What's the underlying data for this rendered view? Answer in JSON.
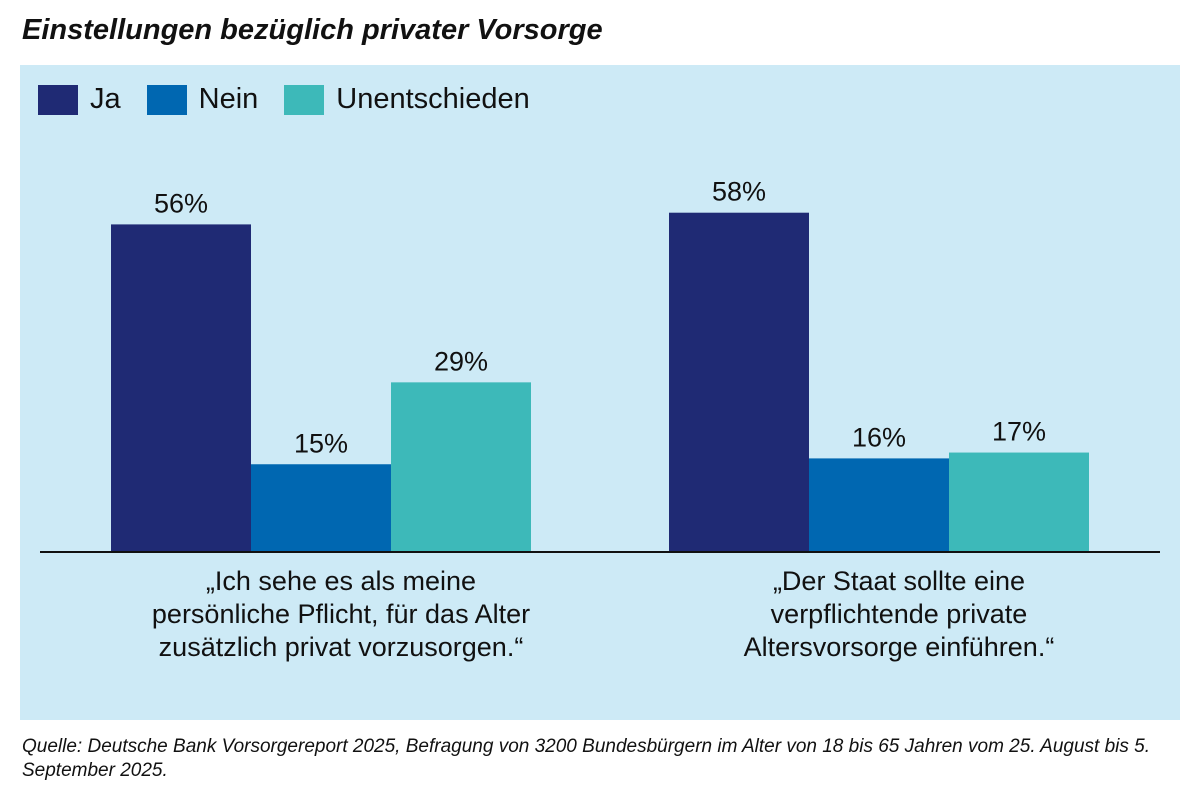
{
  "chart_data": {
    "type": "bar",
    "title": "Einstellungen bezüglich privater Vorsorge",
    "categories": [
      "„Ich sehe es als meine persönliche Pflicht, für das Alter zusätzlich privat vorzusorgen.“",
      "„Der Staat sollte eine verpflichtende private Altersvorsorge einführen.“"
    ],
    "category_lines": [
      [
        "„Ich sehe es als meine",
        "persönliche Pflicht, für das Alter",
        "zusätzlich privat vorzusorgen.“"
      ],
      [
        "„Der Staat sollte eine",
        "verpflichtende private",
        "Altersvorsorge einführen.“"
      ]
    ],
    "series": [
      {
        "name": "Ja",
        "values": [
          56,
          58
        ],
        "color": "#1f2a74"
      },
      {
        "name": "Nein",
        "values": [
          15,
          16
        ],
        "color": "#0067b1"
      },
      {
        "name": "Unentschieden",
        "values": [
          29,
          17
        ],
        "color": "#3db9b9"
      }
    ],
    "value_suffix": "%",
    "ylim": [
      0,
      60
    ],
    "grid": false,
    "legend_placement": "top-left",
    "background_color": "#cdeaf6"
  },
  "source": "Quelle: Deutsche Bank Vorsorgereport 2025, Befragung von 3200 Bundesbürgern im Alter von 18 bis 65 Jahren vom 25. August bis 5. September 2025."
}
